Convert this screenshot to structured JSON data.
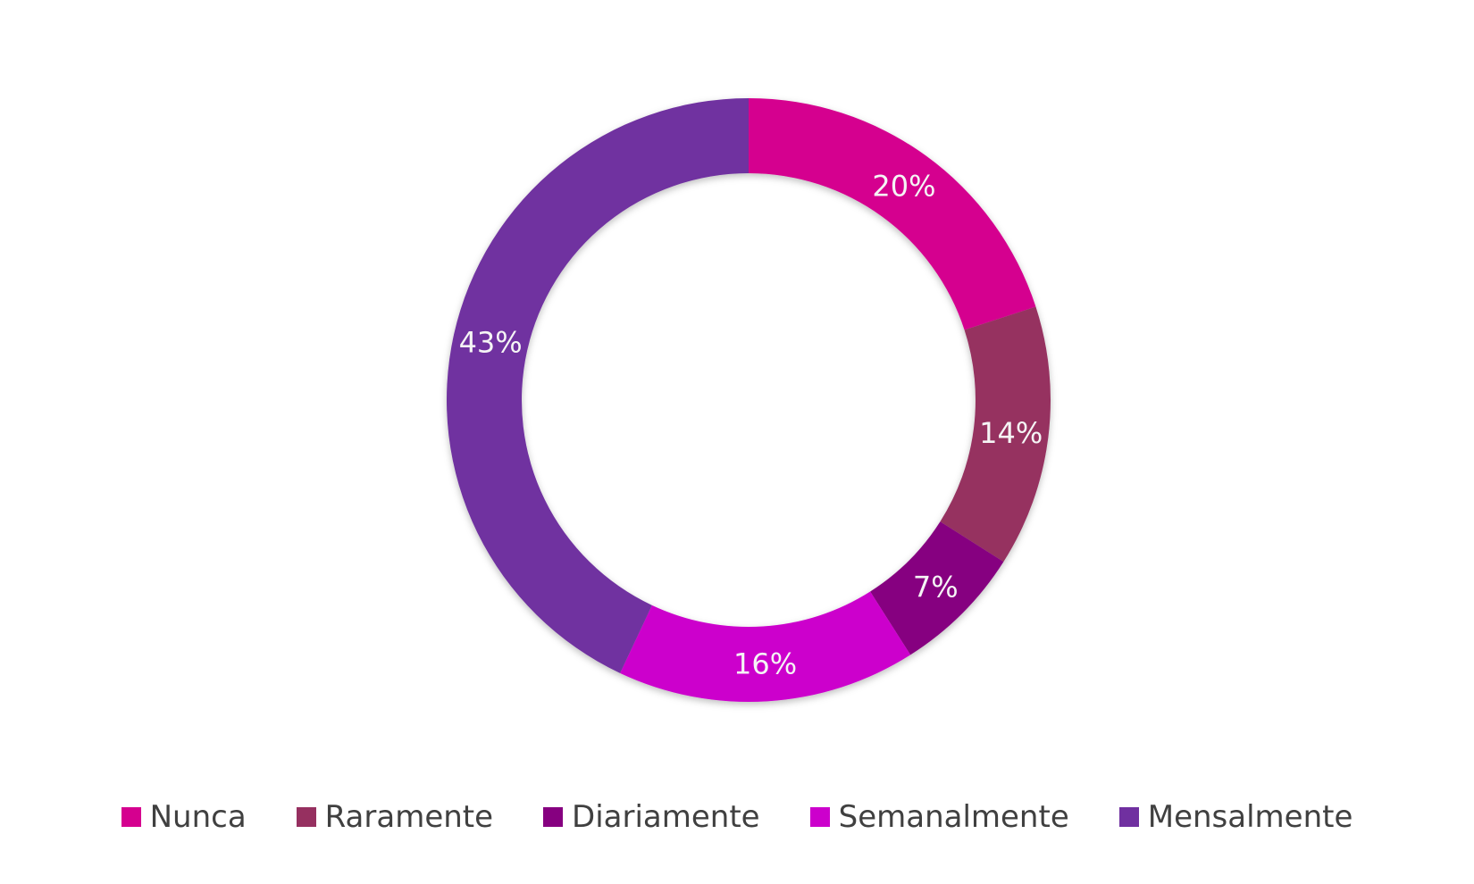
{
  "chart_data": {
    "type": "pie",
    "subtype": "donut",
    "start_angle": "12 o'clock, clockwise",
    "categories": [
      "Nunca",
      "Raramente",
      "Diariamente",
      "Semanalmente",
      "Mensalmente"
    ],
    "values": [
      20,
      14,
      7,
      16,
      43
    ],
    "data_labels": [
      "20%",
      "14%",
      "7%",
      "16%",
      "43%"
    ],
    "colors": [
      "#d5008f",
      "#963060",
      "#860080",
      "#cc00cc",
      "#7030a0"
    ],
    "legend_position": "bottom",
    "title": ""
  }
}
